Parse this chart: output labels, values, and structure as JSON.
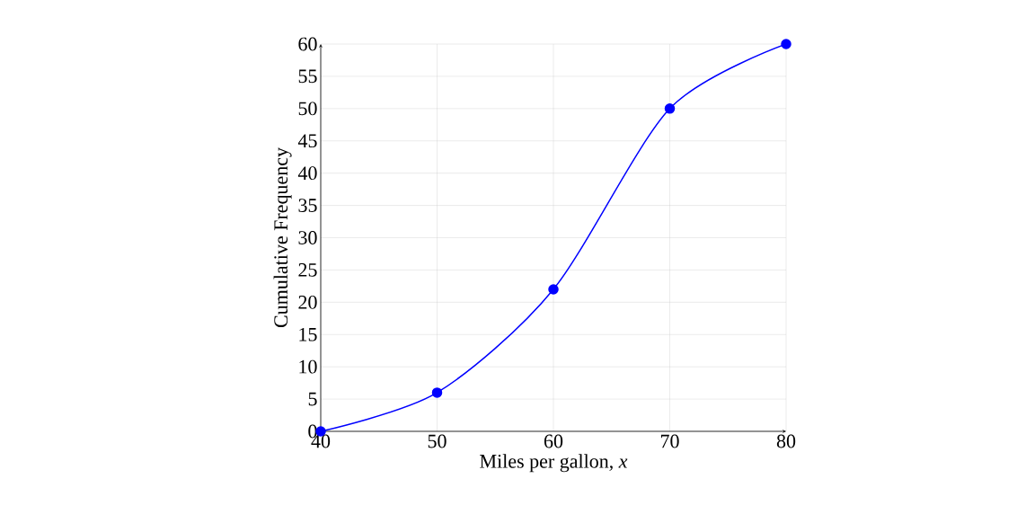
{
  "chart_data": {
    "type": "line",
    "xlabel": "Miles per gallon, *x*",
    "ylabel": "Cumulative Frequency",
    "x": [
      40,
      50,
      60,
      70,
      80
    ],
    "series": [
      {
        "color": "#0000ff",
        "values": [
          0,
          6,
          22,
          50,
          60
        ]
      }
    ],
    "xlim": [
      40,
      80
    ],
    "ylim": [
      0,
      60
    ],
    "xticks": [
      40,
      50,
      60,
      70,
      80
    ],
    "yticks": [
      0,
      5,
      10,
      15,
      20,
      25,
      30,
      35,
      40,
      45,
      50,
      55,
      60
    ],
    "grid": true,
    "marker": "circle",
    "line_style": "solid"
  }
}
